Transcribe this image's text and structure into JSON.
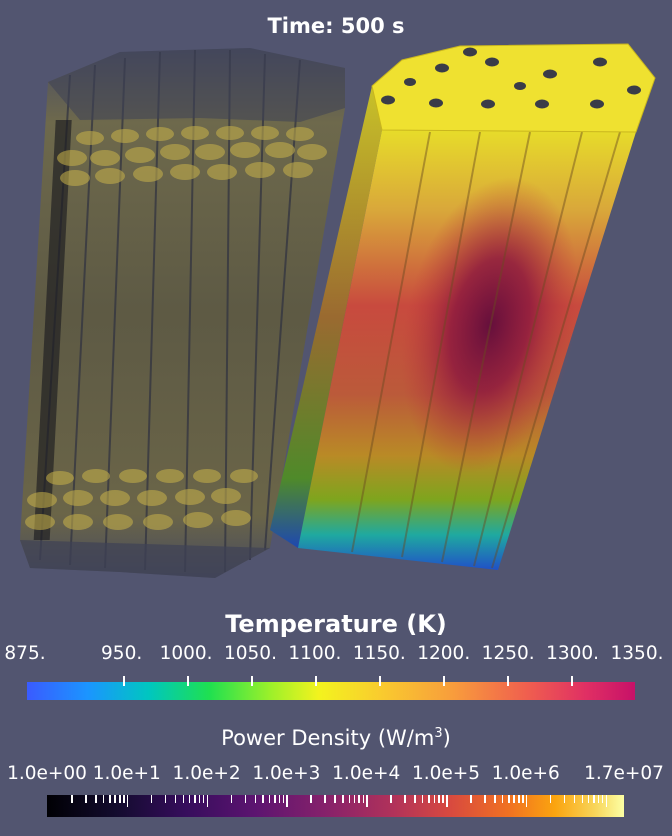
{
  "time_label": "Time:  500 s",
  "temperature_legend": {
    "title": "Temperature (K)",
    "ticks": [
      "875.",
      "950.",
      "1000.",
      "1050.",
      "1100.",
      "1150.",
      "1200.",
      "1250.",
      "1300.",
      "1350."
    ],
    "range": [
      875,
      1350
    ]
  },
  "power_density_legend": {
    "title_text": "Power Density (W/m",
    "title_exponent": "3",
    "title_close": ")",
    "ticks": [
      "1.0e+00",
      "1.0e+1",
      "1.0e+2",
      "1.0e+3",
      "1.0e+4",
      "1.0e+5",
      "1.0e+6",
      "1.7e+07"
    ],
    "range": [
      1,
      17000000
    ],
    "scale": "log"
  },
  "colors": {
    "background": "#525570",
    "hot_core": "#650f3c",
    "top_face": "#efe130"
  }
}
